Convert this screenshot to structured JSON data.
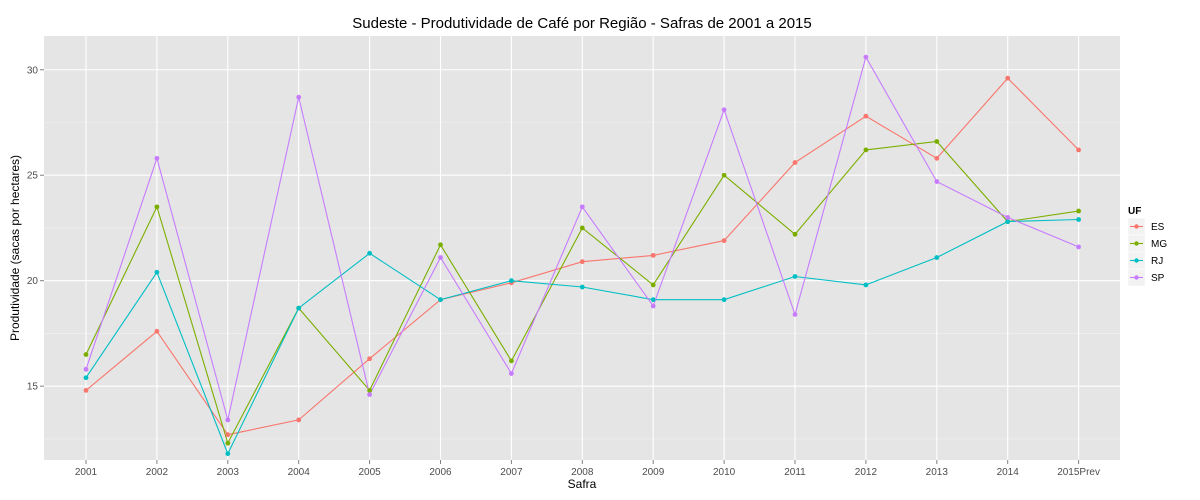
{
  "chart_data": {
    "type": "line",
    "title": "Sudeste  - Produtividade de Café por Região - Safras de 2001 a 2015",
    "xlabel": "Safra",
    "ylabel": "Produtividade (sacas por hectares)",
    "categories": [
      "2001",
      "2002",
      "2003",
      "2004",
      "2005",
      "2006",
      "2007",
      "2008",
      "2009",
      "2010",
      "2011",
      "2012",
      "2013",
      "2014",
      "2015Prev"
    ],
    "yticks": [
      15,
      20,
      25,
      30
    ],
    "ylim": [
      11.5,
      31.6
    ],
    "grid": true,
    "legend": {
      "title": "UF",
      "position": "right"
    },
    "series": [
      {
        "name": "ES",
        "color": "#F8766D",
        "values": [
          14.8,
          17.6,
          12.7,
          13.4,
          16.3,
          19.1,
          19.9,
          20.9,
          21.2,
          21.9,
          25.6,
          27.8,
          25.8,
          29.6,
          26.2
        ]
      },
      {
        "name": "MG",
        "color": "#7CAE00",
        "values": [
          16.5,
          23.5,
          12.3,
          18.7,
          14.8,
          21.7,
          16.2,
          22.5,
          19.8,
          25.0,
          22.2,
          26.2,
          26.6,
          22.8,
          23.3
        ]
      },
      {
        "name": "RJ",
        "color": "#00BFC4",
        "values": [
          15.4,
          20.4,
          11.8,
          18.7,
          21.3,
          19.1,
          20.0,
          19.7,
          19.1,
          19.1,
          20.2,
          19.8,
          21.1,
          22.8,
          22.9
        ]
      },
      {
        "name": "SP",
        "color": "#C77CFF",
        "values": [
          15.8,
          25.8,
          13.4,
          28.7,
          14.6,
          21.1,
          15.6,
          23.5,
          18.8,
          28.1,
          18.4,
          30.6,
          24.7,
          23.0,
          21.6
        ]
      }
    ]
  }
}
